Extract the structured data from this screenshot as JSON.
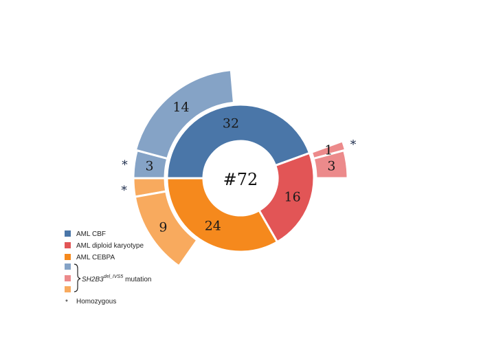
{
  "chart_data": {
    "type": "sunburst",
    "center_label": "#72",
    "inner": [
      {
        "name": "AML CBF",
        "value": 32,
        "color": "#4a76a8"
      },
      {
        "name": "AML diploid karyotype",
        "value": 16,
        "color": "#e25556"
      },
      {
        "name": "AML CEBPA",
        "value": 24,
        "color": "#f5891d"
      }
    ],
    "outer": [
      {
        "group": "AML CBF",
        "value": 3,
        "label": "3",
        "homozygous": true,
        "color": "#85a3c6"
      },
      {
        "group": "AML CBF",
        "value": 14,
        "label": "14",
        "homozygous": false,
        "color": "#85a3c6"
      },
      {
        "group": "AML diploid karyotype",
        "value": 1,
        "label": "1",
        "homozygous": true,
        "color": "#ec8a8b"
      },
      {
        "group": "AML diploid karyotype",
        "value": 3,
        "label": "3",
        "homozygous": false,
        "color": "#ec8a8b"
      },
      {
        "group": "AML CEBPA",
        "value": 2,
        "label": "",
        "homozygous": true,
        "color": "#f8aa5e"
      },
      {
        "group": "AML CEBPA",
        "value": 9,
        "label": "9",
        "homozygous": false,
        "color": "#f8aa5e"
      }
    ],
    "legend": {
      "position": "bottom-left",
      "items": [
        {
          "label": "AML CBF",
          "color": "#4a76a8"
        },
        {
          "label": "AML diploid karyotype",
          "color": "#e25556"
        },
        {
          "label": "AML CEBPA",
          "color": "#f5891d"
        }
      ],
      "mutation_colors": [
        "#85a3c6",
        "#ec8a8b",
        "#f8aa5e"
      ],
      "mutation_label_gene": "SH2B3",
      "mutation_label_superscript": "del_IVS5",
      "mutation_label_suffix": "mutation",
      "homozygous_symbol": "*",
      "homozygous_label": "Homozygous"
    }
  }
}
